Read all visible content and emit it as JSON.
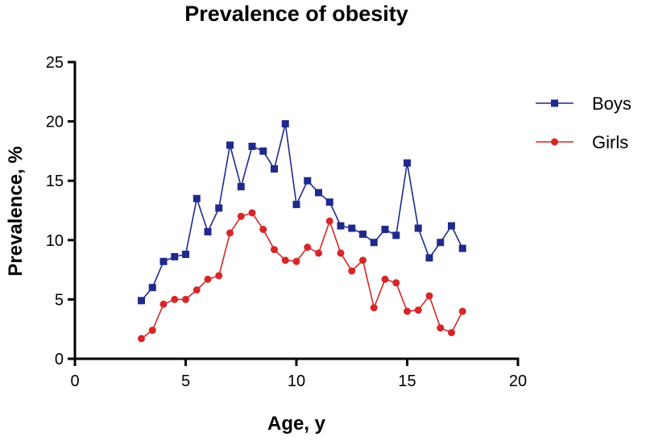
{
  "chart_data": {
    "type": "line",
    "title": "Prevalence of obesity",
    "xlabel": "Age, y",
    "ylabel": "Prevalence, %",
    "xlim": [
      0,
      20
    ],
    "ylim": [
      0,
      25
    ],
    "xticks": [
      0,
      5,
      10,
      15,
      20
    ],
    "yticks": [
      0,
      5,
      10,
      15,
      20,
      25
    ],
    "xtick_labels": [
      "0",
      "5",
      "10",
      "15",
      "20"
    ],
    "ytick_labels": [
      "0",
      "5",
      "10",
      "15",
      "20",
      "25"
    ],
    "grid": false,
    "legend_position": "right",
    "x": [
      3,
      3.5,
      4,
      4.5,
      5,
      5.5,
      6,
      6.5,
      7,
      7.5,
      8,
      8.5,
      9,
      9.5,
      10,
      10.5,
      11,
      11.5,
      12,
      12.5,
      13,
      13.5,
      14,
      14.5,
      15,
      15.5,
      16,
      16.5,
      17,
      17.5
    ],
    "series": [
      {
        "name": "Boys",
        "color": "#1f2a8c",
        "marker": "square",
        "values": [
          4.9,
          6.0,
          8.2,
          8.6,
          8.8,
          13.5,
          10.7,
          12.7,
          18.0,
          14.5,
          17.9,
          17.5,
          16.0,
          19.8,
          13.0,
          15.0,
          14.0,
          13.2,
          11.2,
          11.0,
          10.5,
          9.8,
          10.9,
          10.4,
          16.5,
          11.0,
          8.5,
          9.8,
          11.2,
          9.3
        ]
      },
      {
        "name": "Girls",
        "color": "#d62728",
        "marker": "circle",
        "values": [
          1.7,
          2.4,
          4.6,
          5.0,
          5.0,
          5.8,
          6.7,
          7.0,
          10.6,
          12.0,
          12.3,
          10.9,
          9.2,
          8.3,
          8.2,
          9.4,
          8.9,
          11.6,
          8.9,
          7.4,
          8.3,
          4.3,
          6.7,
          6.4,
          4.0,
          4.1,
          5.3,
          2.6,
          2.2,
          4.0
        ]
      }
    ]
  }
}
